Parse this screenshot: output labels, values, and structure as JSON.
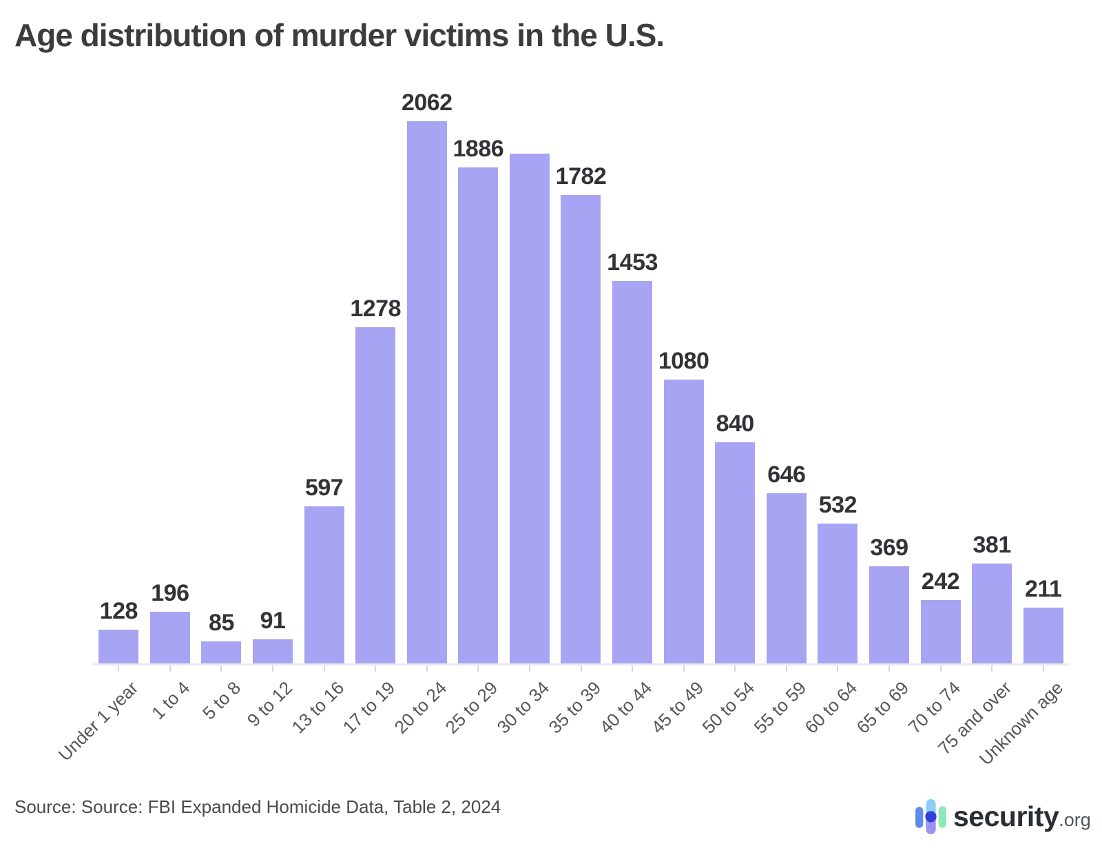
{
  "title": "Age distribution of murder victims in the U.S.",
  "source": {
    "text": "Source: Source: FBI Expanded Homicide Data, Table 2, 2024"
  },
  "branding": {
    "name": "security",
    "tld": ".org",
    "icon": "security-org-pills-logo"
  },
  "colors": {
    "bar": "#a7a4f3",
    "title_text": "#3c3c3f",
    "value_label_text": "#323237",
    "axis_label_text": "#55555e",
    "axis_line": "#eaeaef",
    "tick": "#d7d7de",
    "source_text": "#4a4a4f",
    "logo_pill_left_blue": "#5d8cec",
    "logo_pill_mid_top_skyblue": "#8fcdf8",
    "logo_pill_mid_bottom_purple": "#9c92f0",
    "logo_dot_royal_blue": "#3040d8",
    "logo_pill_right_mint": "#8ce9b9"
  },
  "chart_data": {
    "type": "bar",
    "title": "Age distribution of murder victims in the U.S.",
    "xlabel": "",
    "ylabel": "",
    "categories": [
      "Under 1 year",
      "1 to 4",
      "5 to 8",
      "9 to 12",
      "13 to 16",
      "17 to 19",
      "20 to 24",
      "25 to 29",
      "30 to 34",
      "35 to 39",
      "40 to 44",
      "45 to 49",
      "50 to 54",
      "55 to 59",
      "60 to 64",
      "65 to 69",
      "70 to 74",
      "75 and over",
      "Unknown age"
    ],
    "values": [
      128,
      196,
      85,
      91,
      597,
      1278,
      2062,
      1886,
      1939,
      1782,
      1453,
      1080,
      840,
      646,
      532,
      369,
      242,
      381,
      211
    ],
    "bar_labels": [
      "128",
      "196",
      "85",
      "91",
      "597",
      "1278",
      "2062",
      "1886",
      "",
      "1782",
      "1453",
      "1080",
      "840",
      "646",
      "532",
      "369",
      "242",
      "381",
      "211"
    ],
    "estimated_values_note": "30 to 34 bar displays no value label in the image; value 1939 estimated from bar height",
    "ylim": [
      0,
      2100
    ],
    "grid": false,
    "legend": false,
    "y_axis_shown": false,
    "x_labels_rotation_deg": -45,
    "bar_color": "#a7a4f3"
  }
}
